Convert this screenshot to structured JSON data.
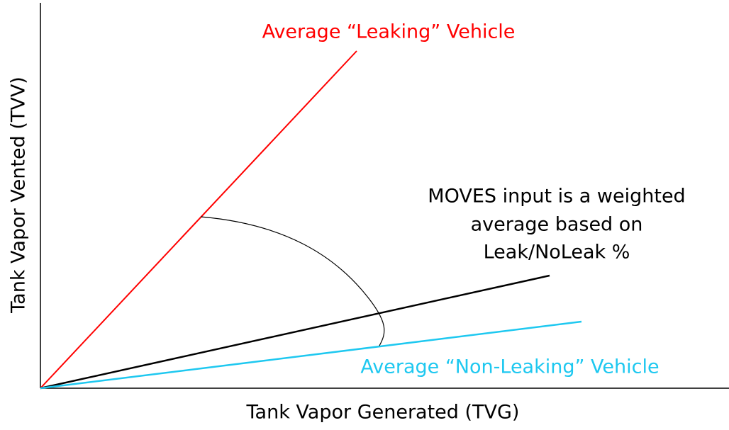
{
  "labels": {
    "leaking": "Average “Leaking” Vehicle",
    "non_leaking": "Average “Non-Leaking” Vehicle",
    "annotation": [
      "MOVES input is a weighted",
      "average based on",
      "Leak/NoLeak %"
    ],
    "x_axis": "Tank Vapor Generated (TVG)",
    "y_axis": "Tank Vapor Vented (TVV)"
  }
}
